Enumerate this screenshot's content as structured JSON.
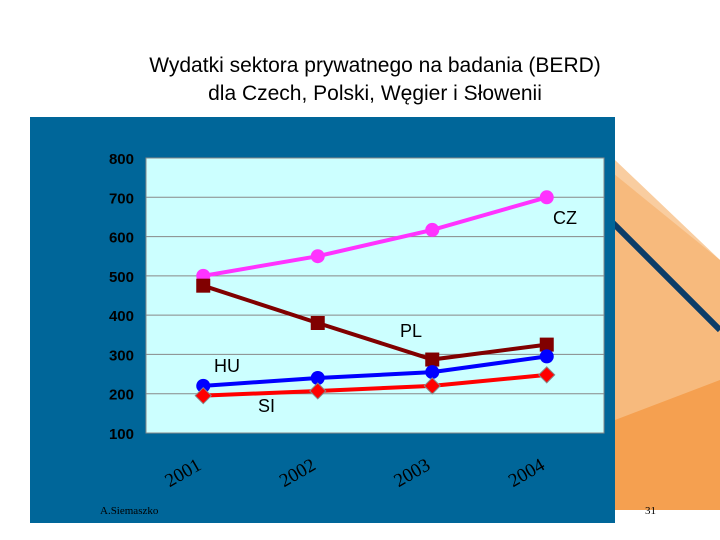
{
  "slide": {
    "title_line1": "Wydatki sektora prywatnego na badania (BERD)",
    "title_line2": "dla Czech, Polski, Węgier i Słowenii",
    "author": "A.Siemaszko",
    "page_number": "31",
    "colors": {
      "plot_panel": "#006699",
      "plot_area": "#ccffff",
      "decor_orange": "#f5a050",
      "decor_dark": "#0b3c68"
    }
  },
  "chart_data": {
    "type": "line",
    "title": "",
    "xlabel": "",
    "ylabel": "",
    "categories": [
      "2001",
      "2002",
      "2003",
      "2004"
    ],
    "yticks": [
      100,
      200,
      300,
      400,
      500,
      600,
      700,
      800
    ],
    "ylim": [
      100,
      800
    ],
    "grid": true,
    "series": [
      {
        "name": "CZ",
        "color": "#ff33ff",
        "marker": "circle",
        "values": [
          500,
          550,
          617,
          700
        ]
      },
      {
        "name": "PL",
        "color": "#800000",
        "marker": "square",
        "values": [
          475,
          380,
          287,
          325
        ]
      },
      {
        "name": "HU",
        "color": "#0000ff",
        "marker": "circle",
        "values": [
          220,
          240,
          255,
          295
        ]
      },
      {
        "name": "SI",
        "color": "#ff0000",
        "marker": "diamond",
        "values": [
          195,
          207,
          220,
          248
        ]
      }
    ]
  }
}
